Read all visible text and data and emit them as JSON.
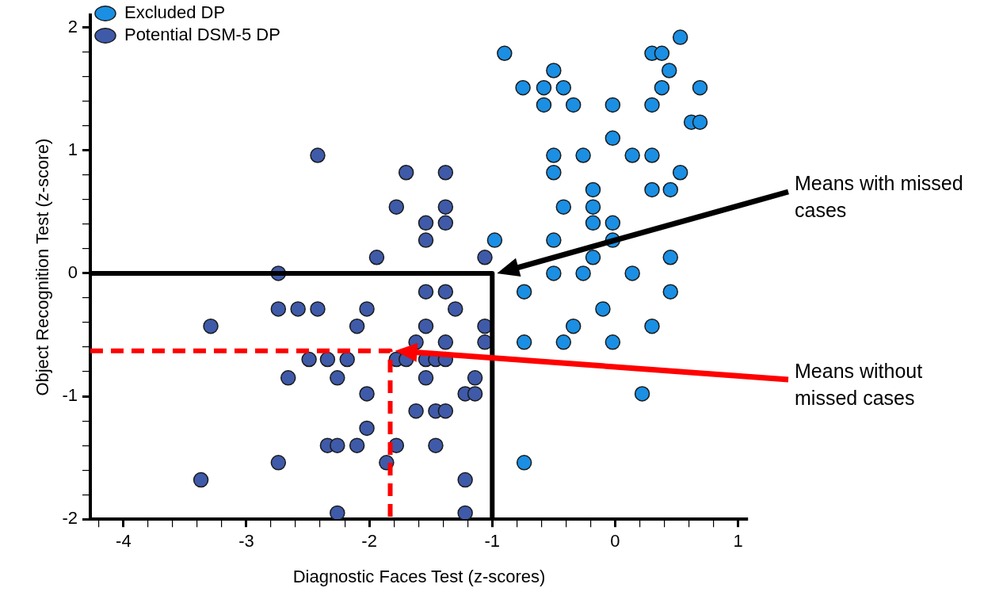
{
  "chart_data": {
    "type": "scatter",
    "xlabel": "Diagnostic Faces Test (z-scores)",
    "ylabel": "Object Recognition Test (z-score)",
    "xlim": [
      -4.27,
      1.08
    ],
    "ylim": [
      -2,
      2.1
    ],
    "xticks": [
      {
        "value": -4.2,
        "label": null
      },
      -4,
      {
        "value": -3.8,
        "label": null
      },
      {
        "value": -3.6,
        "label": null
      },
      {
        "value": -3.4,
        "label": null
      },
      {
        "value": -3.2,
        "label": null
      },
      -3,
      {
        "value": -2.8,
        "label": null
      },
      {
        "value": -2.6,
        "label": null
      },
      {
        "value": -2.4,
        "label": null
      },
      {
        "value": -2.2,
        "label": null
      },
      -2,
      {
        "value": -1.8,
        "label": null
      },
      {
        "value": -1.6,
        "label": null
      },
      {
        "value": -1.4,
        "label": null
      },
      {
        "value": -1.2,
        "label": null
      },
      -1,
      {
        "value": -0.8,
        "label": null
      },
      {
        "value": -0.6,
        "label": null
      },
      {
        "value": -0.4,
        "label": null
      },
      {
        "value": -0.2,
        "label": null
      },
      0,
      {
        "value": 0.2,
        "label": null
      },
      {
        "value": 0.4,
        "label": null
      },
      {
        "value": 0.6,
        "label": null
      },
      {
        "value": 0.8,
        "label": null
      },
      1
    ],
    "yticks": [
      -2,
      {
        "value": -1.8,
        "label": null
      },
      {
        "value": -1.6,
        "label": null
      },
      {
        "value": -1.4,
        "label": null
      },
      {
        "value": -1.2,
        "label": null
      },
      -1,
      {
        "value": -0.8,
        "label": null
      },
      {
        "value": -0.6,
        "label": null
      },
      {
        "value": -0.4,
        "label": null
      },
      {
        "value": -0.2,
        "label": null
      },
      0,
      {
        "value": 0.2,
        "label": null
      },
      {
        "value": 0.4,
        "label": null
      },
      {
        "value": 0.6,
        "label": null
      },
      {
        "value": 0.8,
        "label": null
      },
      1,
      {
        "value": 1.2,
        "label": null
      },
      {
        "value": 1.4,
        "label": null
      },
      {
        "value": 1.6,
        "label": null
      },
      {
        "value": 1.8,
        "label": null
      },
      2
    ],
    "grid": false,
    "legend": "top left",
    "marker": "circle",
    "series": [
      {
        "name": "Excluded DP",
        "color": "#1a8fe3",
        "x": [
          -0.9,
          -0.75,
          -0.58,
          -0.5,
          -0.42,
          -0.58,
          -0.34,
          -0.02,
          0.3,
          0.38,
          0.44,
          0.53,
          0.3,
          0.38,
          0.69,
          0.62,
          0.69,
          -0.02,
          -0.5,
          -0.26,
          0.14,
          0.3,
          -0.5,
          0.53,
          -0.18,
          0.3,
          0.45,
          -0.42,
          -0.18,
          -0.18,
          -0.02,
          -0.02,
          -0.5,
          -0.98,
          -0.18,
          0.45,
          -0.5,
          -0.26,
          0.14,
          -0.74,
          0.45,
          -0.1,
          -0.34,
          0.3,
          -0.74,
          -0.42,
          -0.02,
          0.22,
          -0.74
        ],
        "values": [
          1.79,
          1.51,
          1.51,
          1.65,
          1.51,
          1.37,
          1.37,
          1.37,
          1.37,
          1.51,
          1.65,
          1.92,
          1.79,
          1.79,
          1.51,
          1.23,
          1.23,
          1.1,
          0.96,
          0.96,
          0.96,
          0.96,
          0.82,
          0.82,
          0.68,
          0.68,
          0.68,
          0.54,
          0.54,
          0.41,
          0.41,
          0.27,
          0.27,
          0.27,
          0.13,
          0.13,
          0,
          0,
          0,
          -0.15,
          -0.15,
          -0.29,
          -0.43,
          -0.43,
          -0.56,
          -0.56,
          -0.56,
          -0.98,
          -1.54
        ]
      },
      {
        "name": "Potential DSM-5 DP",
        "color": "#3f5aa8",
        "x": [
          -2.42,
          -1.7,
          -1.38,
          -1.78,
          -1.38,
          -1.54,
          -1.38,
          -1.54,
          -1.94,
          -1.06,
          -2.74,
          -2.74,
          -2.58,
          -2.42,
          -2.02,
          -1.54,
          -1.38,
          -1.3,
          -3.29,
          -2.1,
          -1.54,
          -1.06,
          -1.62,
          -1.38,
          -1.06,
          -2.49,
          -2.34,
          -2.18,
          -1.78,
          -1.7,
          -1.54,
          -1.46,
          -1.38,
          -2.66,
          -2.26,
          -1.54,
          -1.14,
          -2.02,
          -1.22,
          -1.14,
          -2.02,
          -1.62,
          -1.46,
          -1.38,
          -2.34,
          -2.26,
          -2.1,
          -1.78,
          -1.46,
          -2.74,
          -1.86,
          -3.37,
          -1.22,
          -2.26,
          -1.22
        ],
        "values": [
          0.96,
          0.82,
          0.82,
          0.54,
          0.54,
          0.41,
          0.41,
          0.27,
          0.13,
          0.13,
          0,
          -0.29,
          -0.29,
          -0.29,
          -0.29,
          -0.15,
          -0.15,
          -0.29,
          -0.43,
          -0.43,
          -0.43,
          -0.43,
          -0.56,
          -0.56,
          -0.56,
          -0.7,
          -0.7,
          -0.7,
          -0.7,
          -0.7,
          -0.7,
          -0.7,
          -0.7,
          -0.85,
          -0.85,
          -0.85,
          -0.85,
          -0.98,
          -0.98,
          -0.98,
          -1.26,
          -1.12,
          -1.12,
          -1.12,
          -1.4,
          -1.4,
          -1.4,
          -1.4,
          -1.4,
          -1.54,
          -1.54,
          -1.68,
          -1.68,
          -1.95,
          -1.95
        ]
      },
      {
        "type": "line",
        "color": "#000000",
        "line_style": "solid",
        "marker": "none",
        "x": [
          -4.27,
          -1,
          -1
        ],
        "values": [
          0,
          0,
          -2
        ]
      },
      {
        "type": "line",
        "color": "#ff0000",
        "line_style": "dashed",
        "marker": "none",
        "x": [
          -4.27,
          -1.83,
          -1.83
        ],
        "values": [
          -0.63,
          -0.63,
          -2
        ]
      }
    ],
    "annotations": [
      "Means with missed cases",
      "Means without missed cases"
    ]
  }
}
